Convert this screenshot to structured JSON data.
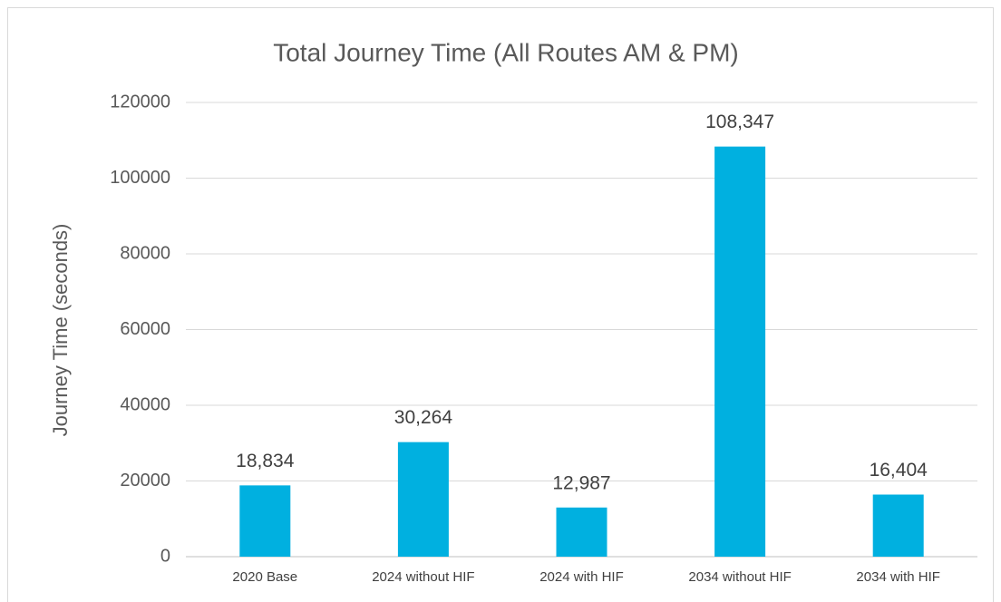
{
  "chart_data": {
    "type": "bar",
    "title": "Total Journey Time (All Routes AM & PM)",
    "y_label": "Journey Time (seconds)",
    "categories": [
      "2020 Base",
      "2024 without HIF",
      "2024 with HIF",
      "2034 without HIF",
      "2034 with HIF"
    ],
    "values": [
      18834,
      30264,
      12987,
      108347,
      16404
    ],
    "value_labels": [
      "18,834",
      "30,264",
      "12,987",
      "108,347",
      "16,404"
    ],
    "color": "#00b0e0",
    "ylim": [
      0,
      120000
    ],
    "yticks": [
      0,
      20000,
      40000,
      60000,
      80000,
      100000,
      120000
    ],
    "grid": true
  }
}
